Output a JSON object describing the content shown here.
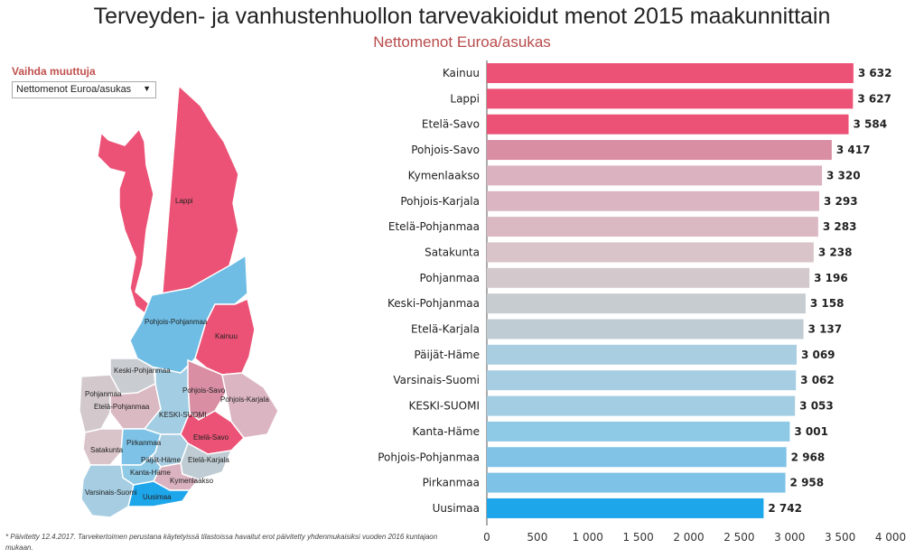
{
  "title": "Terveyden- ja vanhustenhuollon tarvevakioidut menot 2015 maakunnittain",
  "subtitle": "Nettomenot Euroa/asukas",
  "selector": {
    "label": "Vaihda muuttuja",
    "selected_value": "Nettomenot Euroa/asukas"
  },
  "footnote": "* Päivitetty 12.4.2017. Tarvekertoimen perustana käytetyissä tilastoissa havaitut erot päivitetty yhdenmukaisiksi vuoden 2016 kuntajaon mukaan.",
  "map_labels": [
    "Lappi",
    "Pohjois-Pohjanmaa",
    "Kainuu",
    "Keski-Pohjanmaa",
    "Pohjanmaa",
    "Etelä-Pohjanmaa",
    "Pohjois-Savo",
    "Pohjois-Karjala",
    "KESKI-SUOMI",
    "Satakunta",
    "Pirkanmaa",
    "Etelä-Savo",
    "Päijät-Häme",
    "Etelä-Karjala",
    "Kanta-Häme",
    "Kymenlaakso",
    "Varsinais-Suomi",
    "Uusimaa"
  ],
  "colors": {
    "high": "#ec5276",
    "mid": "#cfcfcf",
    "low": "#1ea6eb",
    "title": "#222222",
    "subtitle": "#b84a4a"
  },
  "chart_data": {
    "type": "bar",
    "orientation": "horizontal",
    "categories": [
      "Kainuu",
      "Lappi",
      "Etelä-Savo",
      "Pohjois-Savo",
      "Kymenlaakso",
      "Pohjois-Karjala",
      "Etelä-Pohjanmaa",
      "Satakunta",
      "Pohjanmaa",
      "Keski-Pohjanmaa",
      "Etelä-Karjala",
      "Päijät-Häme",
      "Varsinais-Suomi",
      "KESKI-SUOMI",
      "Kanta-Häme",
      "Pohjois-Pohjanmaa",
      "Pirkanmaa",
      "Uusimaa"
    ],
    "values": [
      3632,
      3627,
      3584,
      3417,
      3320,
      3293,
      3283,
      3238,
      3196,
      3158,
      3137,
      3069,
      3062,
      3053,
      3001,
      2968,
      2958,
      2742
    ],
    "value_labels": [
      "3 632",
      "3 627",
      "3 584",
      "3 417",
      "3 320",
      "3 293",
      "3 283",
      "3 238",
      "3 196",
      "3 158",
      "3 137",
      "3 069",
      "3 062",
      "3 053",
      "3 001",
      "2 968",
      "2 958",
      "2 742"
    ],
    "bar_colors": [
      "#ec5276",
      "#ec5276",
      "#ec5276",
      "#d98ea3",
      "#dbb2bf",
      "#dbb5c1",
      "#dbb9c3",
      "#d9c4ca",
      "#d3c9cd",
      "#c7ccd1",
      "#bfccd3",
      "#a9cde1",
      "#a6cde2",
      "#a3cde2",
      "#8ec9e6",
      "#80c3e6",
      "#7ec3e7",
      "#1ea6eb"
    ],
    "xlim": [
      0,
      4000
    ],
    "xticks": [
      0,
      500,
      1000,
      1500,
      2000,
      2500,
      3000,
      3500,
      4000
    ],
    "xtick_labels": [
      "0",
      "500",
      "1 000",
      "1 500",
      "2 000",
      "2 500",
      "3 000",
      "3 500",
      "4 000"
    ],
    "grid": false
  }
}
